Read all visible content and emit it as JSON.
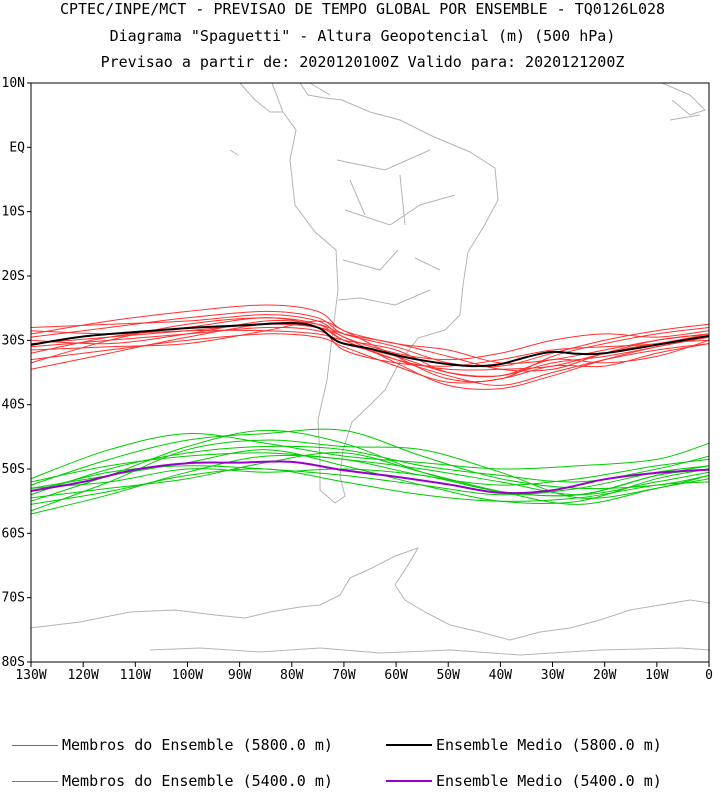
{
  "titles": {
    "line1": "CPTEC/INPE/MCT - PREVISAO DE TEMPO GLOBAL POR ENSEMBLE - TQ0126L028",
    "line2": "Diagrama \"Spaguetti\" - Altura Geopotencial (m) (500 hPa)",
    "line3": "Previsao a partir de: 2020120100Z  Valido para: 2020121200Z"
  },
  "chart_data": {
    "type": "line",
    "title": "Diagrama \"Spaguetti\" - Altura Geopotencial (m) (500 hPa)",
    "x_range": [
      -130,
      0
    ],
    "y_range": [
      -80,
      10
    ],
    "x_ticks": [
      {
        "v": -130,
        "label": "130W"
      },
      {
        "v": -120,
        "label": "120W"
      },
      {
        "v": -110,
        "label": "110W"
      },
      {
        "v": -100,
        "label": "100W"
      },
      {
        "v": -90,
        "label": "90W"
      },
      {
        "v": -80,
        "label": "80W"
      },
      {
        "v": -70,
        "label": "70W"
      },
      {
        "v": -60,
        "label": "60W"
      },
      {
        "v": -50,
        "label": "50W"
      },
      {
        "v": -40,
        "label": "40W"
      },
      {
        "v": -30,
        "label": "30W"
      },
      {
        "v": -20,
        "label": "20W"
      },
      {
        "v": -10,
        "label": "10W"
      },
      {
        "v": 0,
        "label": "0"
      }
    ],
    "y_ticks": [
      {
        "v": 10,
        "label": "10N"
      },
      {
        "v": 0,
        "label": "EQ"
      },
      {
        "v": -10,
        "label": "10S"
      },
      {
        "v": -20,
        "label": "20S"
      },
      {
        "v": -30,
        "label": "30S"
      },
      {
        "v": -40,
        "label": "40S"
      },
      {
        "v": -50,
        "label": "50S"
      },
      {
        "v": -60,
        "label": "60S"
      },
      {
        "v": -70,
        "label": "70S"
      },
      {
        "v": -80,
        "label": "80S"
      }
    ],
    "series": [
      {
        "name": "Membros do Ensemble (5800.0 m)",
        "color": "#ff3030",
        "width": 1,
        "group": "member5800",
        "members": [
          {
            "x": [
              -130,
              -115,
              -100,
              -85,
              -75,
              -70,
              -60,
              -50,
              -40,
              -30,
              -20,
              -10,
              0
            ],
            "y": [
              -31.0,
              -30.0,
              -29.0,
              -28.0,
              -28.5,
              -30.5,
              -32.5,
              -35.0,
              -35.5,
              -33.5,
              -32.5,
              -31.0,
              -29.5
            ]
          },
          {
            "x": [
              -130,
              -115,
              -100,
              -85,
              -75,
              -70,
              -60,
              -50,
              -40,
              -30,
              -20,
              -10,
              0
            ],
            "y": [
              -28.0,
              -27.5,
              -27.0,
              -26.0,
              -27.0,
              -29.5,
              -32.0,
              -33.0,
              -32.0,
              -30.0,
              -29.0,
              -29.5,
              -28.5
            ]
          },
          {
            "x": [
              -130,
              -115,
              -100,
              -85,
              -75,
              -70,
              -60,
              -50,
              -40,
              -30,
              -20,
              -10,
              0
            ],
            "y": [
              -33.0,
              -31.5,
              -30.0,
              -29.0,
              -29.5,
              -31.0,
              -34.0,
              -36.5,
              -36.0,
              -34.0,
              -34.0,
              -32.0,
              -30.5
            ]
          },
          {
            "x": [
              -130,
              -115,
              -100,
              -85,
              -75,
              -70,
              -60,
              -50,
              -40,
              -30,
              -20,
              -10,
              0
            ],
            "y": [
              -29.5,
              -28.0,
              -26.5,
              -25.5,
              -26.5,
              -29.0,
              -31.0,
              -33.5,
              -34.0,
              -32.0,
              -30.0,
              -28.5,
              -27.5
            ]
          },
          {
            "x": [
              -130,
              -115,
              -100,
              -85,
              -75,
              -70,
              -60,
              -50,
              -40,
              -30,
              -20,
              -10,
              0
            ],
            "y": [
              -34.5,
              -32.0,
              -29.5,
              -27.5,
              -28.0,
              -30.0,
              -33.0,
              -35.5,
              -37.0,
              -35.0,
              -33.0,
              -31.5,
              -30.5
            ]
          },
          {
            "x": [
              -130,
              -115,
              -100,
              -85,
              -75,
              -70,
              -60,
              -50,
              -40,
              -30,
              -20,
              -10,
              0
            ],
            "y": [
              -30.0,
              -30.5,
              -29.0,
              -27.0,
              -27.5,
              -29.0,
              -30.5,
              -32.5,
              -34.5,
              -34.5,
              -32.0,
              -30.0,
              -29.0
            ]
          },
          {
            "x": [
              -130,
              -115,
              -100,
              -85,
              -75,
              -70,
              -60,
              -50,
              -40,
              -30,
              -20,
              -10,
              0
            ],
            "y": [
              -32.0,
              -29.5,
              -28.0,
              -26.5,
              -28.0,
              -31.5,
              -33.5,
              -34.0,
              -33.0,
              -31.5,
              -31.0,
              -30.5,
              -29.0
            ]
          },
          {
            "x": [
              -130,
              -115,
              -100,
              -85,
              -75,
              -70,
              -60,
              -50,
              -40,
              -30,
              -20,
              -10,
              0
            ],
            "y": [
              -28.5,
              -29.0,
              -28.5,
              -28.5,
              -29.0,
              -30.0,
              -31.5,
              -35.0,
              -35.5,
              -33.0,
              -33.5,
              -32.5,
              -30.0
            ]
          },
          {
            "x": [
              -130,
              -115,
              -100,
              -85,
              -75,
              -70,
              -60,
              -50,
              -40,
              -30,
              -20,
              -10,
              0
            ],
            "y": [
              -31.5,
              -31.0,
              -30.5,
              -28.5,
              -27.0,
              -28.5,
              -32.5,
              -36.0,
              -36.0,
              -32.5,
              -30.5,
              -29.0,
              -28.0
            ]
          },
          {
            "x": [
              -130,
              -115,
              -100,
              -85,
              -75,
              -70,
              -60,
              -50,
              -40,
              -30,
              -20,
              -10,
              0
            ],
            "y": [
              -29.0,
              -27.0,
              -25.5,
              -24.5,
              -25.5,
              -28.5,
              -30.5,
              -31.5,
              -33.5,
              -33.0,
              -31.5,
              -30.0,
              -29.0
            ]
          },
          {
            "x": [
              -130,
              -115,
              -100,
              -85,
              -75,
              -70,
              -60,
              -50,
              -40,
              -30,
              -20,
              -10,
              0
            ],
            "y": [
              -33.5,
              -30.0,
              -27.5,
              -26.5,
              -27.5,
              -30.0,
              -33.0,
              -34.5,
              -34.5,
              -34.0,
              -32.0,
              -30.5,
              -30.0
            ]
          },
          {
            "x": [
              -130,
              -115,
              -100,
              -85,
              -75,
              -70,
              -60,
              -50,
              -40,
              -30,
              -20,
              -10,
              0
            ],
            "y": [
              -30.5,
              -29.5,
              -28.5,
              -27.5,
              -28.0,
              -29.5,
              -33.5,
              -37.0,
              -37.5,
              -35.5,
              -33.0,
              -31.0,
              -29.5
            ]
          }
        ]
      },
      {
        "name": "Ensemble Medio (5800.0 m)",
        "color": "#000000",
        "width": 2,
        "group": "mean5800",
        "members": [
          {
            "x": [
              -130,
              -120,
              -110,
              -100,
              -90,
              -80,
              -75,
              -72,
              -70,
              -65,
              -60,
              -55,
              -50,
              -45,
              -40,
              -35,
              -30,
              -25,
              -20,
              -10,
              0
            ],
            "y": [
              -30.7,
              -29.4,
              -28.7,
              -28.1,
              -27.7,
              -27.3,
              -28.0,
              -29.8,
              -30.5,
              -31.3,
              -32.3,
              -33.1,
              -33.7,
              -34.0,
              -33.7,
              -32.6,
              -31.8,
              -32.1,
              -32.0,
              -30.7,
              -29.3
            ]
          }
        ]
      },
      {
        "name": "Membros do Ensemble (5400.0 m)",
        "color": "#00cc00",
        "width": 1,
        "group": "member5400",
        "members": [
          {
            "x": [
              -130,
              -115,
              -100,
              -85,
              -70,
              -55,
              -40,
              -25,
              -10,
              0
            ],
            "y": [
              -53.0,
              -51.0,
              -49.0,
              -47.0,
              -49.5,
              -52.5,
              -55.0,
              -55.0,
              -51.5,
              -50.0
            ]
          },
          {
            "x": [
              -130,
              -115,
              -100,
              -85,
              -70,
              -55,
              -40,
              -25,
              -10,
              0
            ],
            "y": [
              -55.0,
              -51.0,
              -46.5,
              -44.0,
              -46.0,
              -50.5,
              -53.5,
              -54.0,
              -51.0,
              -49.5
            ]
          },
          {
            "x": [
              -130,
              -115,
              -100,
              -85,
              -70,
              -55,
              -40,
              -25,
              -10,
              0
            ],
            "y": [
              -52.0,
              -49.5,
              -48.0,
              -47.5,
              -48.5,
              -50.0,
              -52.0,
              -54.0,
              -52.0,
              -50.5
            ]
          },
          {
            "x": [
              -130,
              -115,
              -100,
              -85,
              -70,
              -55,
              -40,
              -25,
              -10,
              0
            ],
            "y": [
              -56.5,
              -52.0,
              -47.0,
              -45.5,
              -46.5,
              -47.0,
              -50.5,
              -54.5,
              -53.0,
              -51.0
            ]
          },
          {
            "x": [
              -130,
              -115,
              -100,
              -85,
              -70,
              -55,
              -40,
              -25,
              -10,
              0
            ],
            "y": [
              -53.5,
              -50.5,
              -49.5,
              -50.0,
              -51.0,
              -52.5,
              -54.0,
              -53.0,
              -50.5,
              -49.5
            ]
          },
          {
            "x": [
              -130,
              -115,
              -100,
              -85,
              -70,
              -55,
              -40,
              -25,
              -10,
              0
            ],
            "y": [
              -51.5,
              -47.0,
              -44.5,
              -46.0,
              -48.0,
              -49.0,
              -50.0,
              -49.5,
              -48.5,
              -46.0
            ]
          },
          {
            "x": [
              -130,
              -115,
              -100,
              -85,
              -70,
              -55,
              -40,
              -25,
              -10,
              0
            ],
            "y": [
              -54.5,
              -53.0,
              -51.5,
              -49.0,
              -47.5,
              -50.5,
              -53.5,
              -55.5,
              -53.0,
              -51.5
            ]
          },
          {
            "x": [
              -130,
              -115,
              -100,
              -85,
              -70,
              -55,
              -40,
              -25,
              -10,
              0
            ],
            "y": [
              -52.5,
              -48.5,
              -45.5,
              -44.5,
              -44.0,
              -48.0,
              -51.5,
              -53.0,
              -52.5,
              -51.0
            ]
          },
          {
            "x": [
              -130,
              -115,
              -100,
              -85,
              -70,
              -55,
              -40,
              -25,
              -10,
              0
            ],
            "y": [
              -57.0,
              -54.0,
              -50.5,
              -48.0,
              -48.5,
              -51.0,
              -52.5,
              -51.5,
              -49.5,
              -48.5
            ]
          },
          {
            "x": [
              -130,
              -115,
              -100,
              -85,
              -70,
              -55,
              -40,
              -25,
              -10,
              0
            ],
            "y": [
              -53.0,
              -52.0,
              -50.0,
              -50.5,
              -50.0,
              -51.0,
              -53.5,
              -54.0,
              -51.0,
              -50.0
            ]
          },
          {
            "x": [
              -130,
              -115,
              -100,
              -85,
              -70,
              -55,
              -40,
              -25,
              -10,
              0
            ],
            "y": [
              -54.0,
              -50.0,
              -47.5,
              -46.5,
              -47.0,
              -49.5,
              -51.0,
              -52.0,
              -50.0,
              -48.0
            ]
          },
          {
            "x": [
              -130,
              -115,
              -100,
              -85,
              -70,
              -55,
              -40,
              -25,
              -10,
              0
            ],
            "y": [
              -55.5,
              -53.5,
              -51.0,
              -50.0,
              -52.0,
              -54.0,
              -55.0,
              -54.5,
              -52.5,
              -52.0
            ]
          }
        ]
      },
      {
        "name": "Ensemble Medio (5400.0 m)",
        "color": "#9900cc",
        "width": 2,
        "group": "mean5400",
        "members": [
          {
            "x": [
              -130,
              -120,
              -110,
              -100,
              -90,
              -80,
              -70,
              -60,
              -50,
              -40,
              -30,
              -20,
              -10,
              0
            ],
            "y": [
              -53.4,
              -52.0,
              -50.1,
              -49.1,
              -49.0,
              -48.9,
              -50.2,
              -51.2,
              -52.4,
              -53.7,
              -53.3,
              -51.6,
              -50.6,
              -50.1
            ]
          }
        ]
      }
    ]
  },
  "legend": [
    {
      "label": "Membros do Ensemble (5800.0 m)",
      "color": "#ff3030"
    },
    {
      "label": "Ensemble Medio (5800.0 m)",
      "color": "#000000"
    },
    {
      "label": "Membros do Ensemble (5400.0 m)",
      "color": "#00cc00"
    },
    {
      "label": "Ensemble Medio (5400.0 m)",
      "color": "#9900cc"
    }
  ]
}
